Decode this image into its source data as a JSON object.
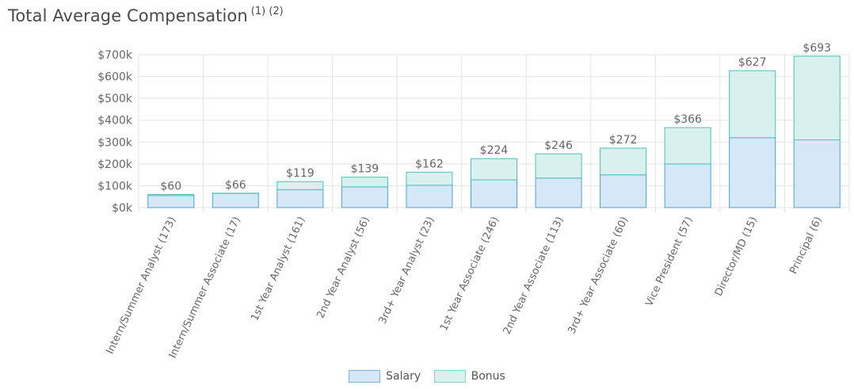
{
  "header": {
    "title": "Total Average Compensation",
    "footnotes": "(1) (2)"
  },
  "colors": {
    "salary_fill": "#d6e8f7",
    "salary_stroke": "#4aa2d4",
    "bonus_fill": "#d8f1ee",
    "bonus_stroke": "#4fbfb8",
    "grid": "#e3e3e3",
    "text": "#666666"
  },
  "legend": {
    "salary_label": "Salary",
    "bonus_label": "Bonus"
  },
  "chart_data": {
    "type": "bar",
    "stacked": true,
    "title": "Total Average Compensation",
    "xlabel": "",
    "ylabel": "",
    "ylim": [
      0,
      700
    ],
    "y_ticks": [
      0,
      100,
      200,
      300,
      400,
      500,
      600,
      700
    ],
    "y_tick_labels": [
      "$0k",
      "$100k",
      "$200k",
      "$300k",
      "$400k",
      "$500k",
      "$600k",
      "$700k"
    ],
    "grid": true,
    "legend_position": "bottom-center",
    "categories": [
      "Intern/Summer Analyst (173)",
      "Intern/Summer Associate (17)",
      "1st Year Analyst (161)",
      "2nd Year Analyst (56)",
      "3rd+ Year Analyst (23)",
      "1st Year Associate (246)",
      "2nd Year Associate (113)",
      "3rd+ Year Associate (60)",
      "Vice President (57)",
      "Director/MD (15)",
      "Principal (6)"
    ],
    "series": [
      {
        "name": "Salary",
        "values": [
          55,
          65,
          82,
          95,
          102,
          127,
          135,
          150,
          200,
          320,
          310
        ]
      },
      {
        "name": "Bonus",
        "values": [
          5,
          1,
          37,
          44,
          60,
          97,
          111,
          122,
          166,
          307,
          383
        ]
      }
    ],
    "totals": [
      60,
      66,
      119,
      139,
      162,
      224,
      246,
      272,
      366,
      627,
      693
    ],
    "total_labels": [
      "$60",
      "$66",
      "$119",
      "$139",
      "$162",
      "$224",
      "$246",
      "$272",
      "$366",
      "$627",
      "$693"
    ]
  }
}
